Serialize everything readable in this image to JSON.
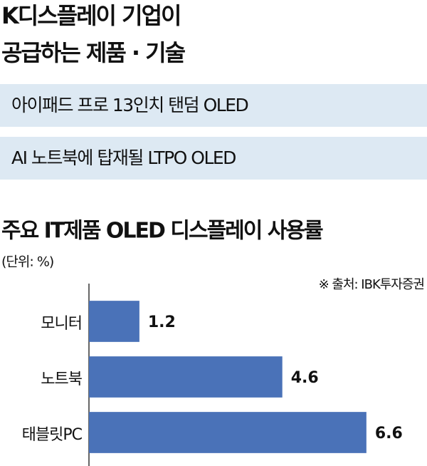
{
  "header": {
    "title_lines": [
      "K디스플레이 기업이",
      "공급하는 제품 · 기술"
    ]
  },
  "items": [
    "아이패드 프로 13인치 탠덤 OLED",
    "AI 노트북에 탑재될 LTPO OLED"
  ],
  "chart_data": {
    "type": "bar",
    "orientation": "horizontal",
    "title": "주요 IT제품 OLED 디스플레이 사용률",
    "unit_note": "(단위: %)",
    "source": "※ 출처: IBK투자증권",
    "categories": [
      "모니터",
      "노트북",
      "태블릿PC"
    ],
    "values": [
      1.2,
      4.6,
      6.6
    ],
    "color": "#4a72b8",
    "xlim": [
      0,
      7.5
    ]
  }
}
